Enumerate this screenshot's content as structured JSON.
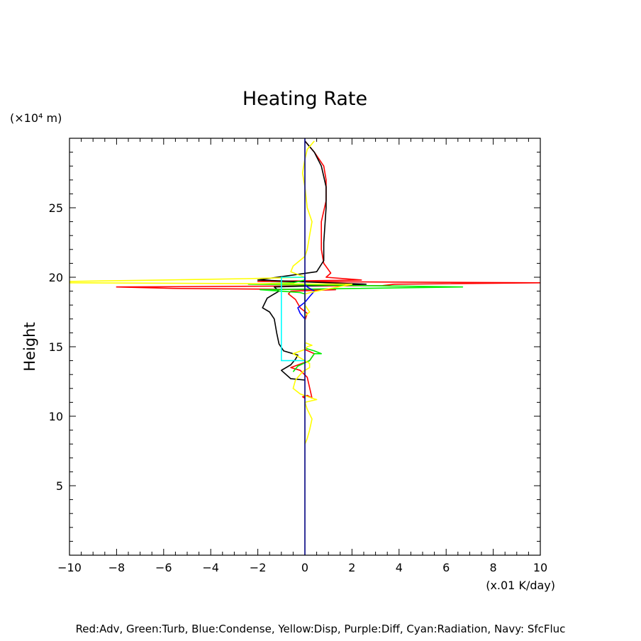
{
  "chart_data": {
    "type": "line",
    "title": "Heating Rate",
    "ylabel": "Height",
    "y_unit": "(×10⁴ m)",
    "x_unit": "(x.01 K/day)",
    "xlim": [
      -10,
      10
    ],
    "ylim": [
      0,
      30
    ],
    "x_ticks": [
      -10,
      -8,
      -6,
      -4,
      -2,
      0,
      2,
      4,
      6,
      8,
      10
    ],
    "y_ticks": [
      5,
      10,
      15,
      20,
      25
    ],
    "grid": false,
    "footer": "Red:Adv, Green:Turb, Blue:Condense, Yellow:Disp, Purple:Diff, Cyan:Radiation, Navy: SfcFluc",
    "series": [
      {
        "color": "#ff0000",
        "points": [
          [
            0,
            11.3
          ],
          [
            -0.1,
            11.4
          ],
          [
            0.1,
            11.5
          ],
          [
            0.3,
            11.3
          ],
          [
            0.1,
            12.8
          ],
          [
            -0.2,
            13.3
          ],
          [
            -0.6,
            13.5
          ],
          [
            0.2,
            14.0
          ],
          [
            0.4,
            14.5
          ],
          [
            0,
            14.8
          ],
          [
            0,
            16.9
          ],
          [
            0.1,
            17.4
          ],
          [
            -0.2,
            17.8
          ],
          [
            -0.4,
            18.4
          ],
          [
            -0.7,
            18.8
          ],
          [
            -0.6,
            19.0
          ],
          [
            1.3,
            19.1
          ],
          [
            -5.6,
            19.2
          ],
          [
            -8.0,
            19.3
          ],
          [
            3.3,
            19.4
          ],
          [
            3.8,
            19.5
          ],
          [
            10.0,
            19.6
          ],
          [
            -2.0,
            19.7
          ],
          [
            2.4,
            19.8
          ],
          [
            0.9,
            20.0
          ],
          [
            1.1,
            20.3
          ],
          [
            0.8,
            21.0
          ],
          [
            0.7,
            22.0
          ],
          [
            0.7,
            24.0
          ],
          [
            0.9,
            25.5
          ],
          [
            0.9,
            27.0
          ],
          [
            0.8,
            28.0
          ],
          [
            0.4,
            29.0
          ],
          [
            0,
            29.8
          ]
        ]
      },
      {
        "color": "#000000",
        "points": [
          [
            0,
            12.6
          ],
          [
            -0.6,
            12.7
          ],
          [
            -1.0,
            13.3
          ],
          [
            -0.6,
            13.7
          ],
          [
            -0.4,
            14.1
          ],
          [
            -0.3,
            14.4
          ],
          [
            -0.9,
            14.7
          ],
          [
            -1.1,
            15.2
          ],
          [
            -1.2,
            16.0
          ],
          [
            -1.3,
            17.0
          ],
          [
            -1.5,
            17.5
          ],
          [
            -1.8,
            17.8
          ],
          [
            -1.6,
            18.5
          ],
          [
            -1.1,
            19.0
          ],
          [
            -1.3,
            19.3
          ],
          [
            2.6,
            19.5
          ],
          [
            -2.0,
            19.8
          ],
          [
            0.5,
            20.4
          ],
          [
            0.8,
            21.2
          ],
          [
            0.8,
            22.5
          ],
          [
            0.9,
            25.0
          ],
          [
            0.9,
            26.5
          ],
          [
            0.7,
            28.0
          ],
          [
            0.4,
            29.0
          ],
          [
            0,
            29.8
          ]
        ]
      },
      {
        "color": "#00ee00",
        "points": [
          [
            -0.5,
            13.2
          ],
          [
            -0.3,
            13.6
          ],
          [
            0.2,
            14.0
          ],
          [
            0.4,
            14.5
          ],
          [
            0.7,
            14.5
          ],
          [
            0.4,
            14.7
          ],
          [
            0,
            14.9
          ],
          [
            0,
            18.8
          ],
          [
            -0.2,
            18.9
          ],
          [
            -1.9,
            19.1
          ],
          [
            6.7,
            19.3
          ],
          [
            2.5,
            19.4
          ],
          [
            -2.4,
            19.5
          ],
          [
            -0.5,
            19.6
          ],
          [
            0,
            19.8
          ]
        ]
      },
      {
        "color": "#0000ff",
        "points": [
          [
            0,
            17.0
          ],
          [
            -0.2,
            17.4
          ],
          [
            -0.3,
            17.8
          ],
          [
            0,
            18.2
          ],
          [
            0.2,
            18.6
          ],
          [
            0.4,
            19.0
          ],
          [
            0.1,
            19.3
          ],
          [
            0,
            19.5
          ],
          [
            0,
            20.0
          ]
        ]
      },
      {
        "color": "#ffff00",
        "points": [
          [
            0,
            8.0
          ],
          [
            0.1,
            8.4
          ],
          [
            0.2,
            9.0
          ],
          [
            0.3,
            9.8
          ],
          [
            0.1,
            10.5
          ],
          [
            0,
            11.0
          ],
          [
            0.5,
            11.2
          ],
          [
            0.3,
            11.3
          ],
          [
            -0.2,
            11.6
          ],
          [
            -0.5,
            12.0
          ],
          [
            -0.4,
            12.6
          ],
          [
            -0.1,
            13.2
          ],
          [
            0.2,
            13.5
          ],
          [
            0.2,
            13.8
          ],
          [
            -0.5,
            14.5
          ],
          [
            0,
            14.8
          ],
          [
            0.1,
            15.0
          ],
          [
            0.3,
            15.1
          ],
          [
            0,
            15.3
          ],
          [
            0,
            17.2
          ],
          [
            0.2,
            17.5
          ],
          [
            0,
            18.0
          ],
          [
            0,
            18.8
          ],
          [
            0.5,
            19.0
          ],
          [
            2.0,
            19.5
          ],
          [
            -10.0,
            19.6
          ],
          [
            -10.0,
            19.7
          ],
          [
            -6.0,
            19.8
          ],
          [
            -2.5,
            19.9
          ],
          [
            0,
            20.0
          ],
          [
            -0.6,
            20.4
          ],
          [
            -0.5,
            20.8
          ],
          [
            0,
            21.5
          ],
          [
            0.1,
            22.0
          ],
          [
            0.2,
            23.0
          ],
          [
            0.3,
            24.0
          ],
          [
            0.1,
            25.0
          ],
          [
            0,
            26.5
          ],
          [
            -0.1,
            27.5
          ],
          [
            0,
            28.5
          ],
          [
            0.1,
            29.2
          ],
          [
            0.4,
            29.8
          ]
        ]
      },
      {
        "color": "#00ffff",
        "points": [
          [
            0,
            14.0
          ],
          [
            -1.0,
            14.0
          ],
          [
            -1.0,
            20.0
          ],
          [
            0,
            20.0
          ]
        ]
      },
      {
        "color": "#000080",
        "points": [
          [
            0,
            0
          ],
          [
            0,
            30
          ]
        ]
      }
    ]
  }
}
